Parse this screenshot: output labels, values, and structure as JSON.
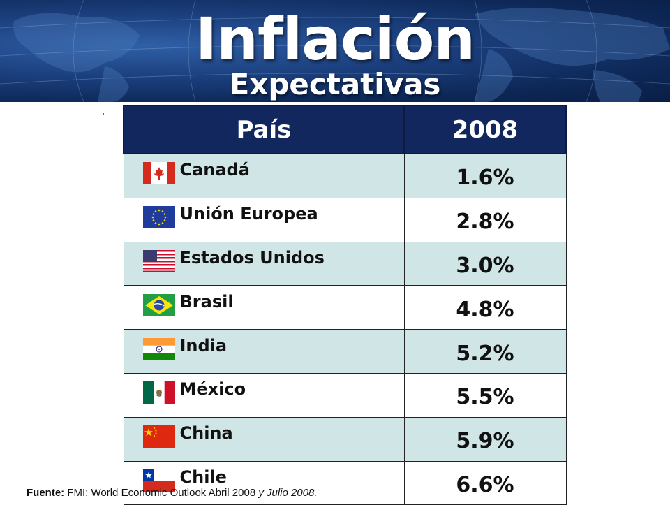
{
  "header": {
    "title": "Inflación",
    "subtitle": "Expectativas"
  },
  "table": {
    "columns": [
      "País",
      "2008"
    ],
    "rows": [
      {
        "country": "Canadá",
        "value": "1.6%",
        "flag": "canada-flag-icon"
      },
      {
        "country": "Unión Europea",
        "value": "2.8%",
        "flag": "eu-flag-icon"
      },
      {
        "country": "Estados Unidos",
        "value": "3.0%",
        "flag": "usa-flag-icon"
      },
      {
        "country": "Brasil",
        "value": "4.8%",
        "flag": "brazil-flag-icon"
      },
      {
        "country": "India",
        "value": "5.2%",
        "flag": "india-flag-icon"
      },
      {
        "country": "México",
        "value": "5.5%",
        "flag": "mexico-flag-icon"
      },
      {
        "country": "China",
        "value": "5.9%",
        "flag": "china-flag-icon"
      },
      {
        "country": "Chile",
        "value": "6.6%",
        "flag": "chile-flag-icon"
      }
    ]
  },
  "source": {
    "label": "Fuente:",
    "text": " FMI: World Economic Outlook Abril 2008 ",
    "italic": "y Julio 2008."
  },
  "colors": {
    "header_bg": "#13275f",
    "odd_row": "#cfe5e6",
    "even_row": "#ffffff",
    "banner": "#1b3f7d"
  }
}
